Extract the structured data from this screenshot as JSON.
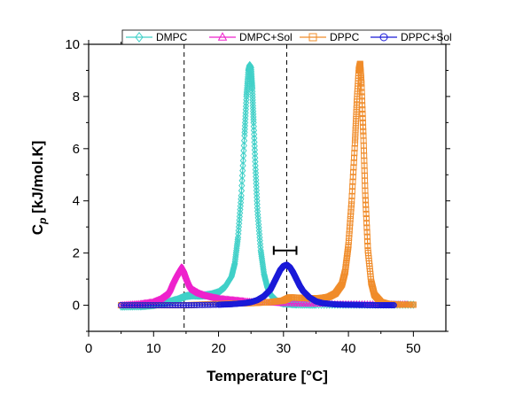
{
  "chart_data": {
    "type": "line",
    "xlabel": "Temperature [°C]",
    "ylabel_main": "C",
    "ylabel_sub": "p",
    "ylabel_unit": "  [kJ/mol.K]",
    "xlim": [
      0,
      55
    ],
    "ylim": [
      -1,
      10
    ],
    "xticks": [
      0,
      10,
      20,
      30,
      40,
      50
    ],
    "yticks": [
      0,
      2,
      4,
      6,
      8,
      10
    ],
    "legend_position": "top",
    "grid": false,
    "reference_lines_x": [
      14.7,
      30.5
    ],
    "error_bar": {
      "x_min": 28.5,
      "x_max": 32.0,
      "y": 2.1
    },
    "series": [
      {
        "name": "DMPC",
        "color": "#40d0c8",
        "marker": "diamond",
        "x": [
          5,
          8,
          10,
          12,
          14,
          15,
          16,
          17,
          18,
          19,
          20,
          21,
          22,
          22.5,
          23,
          23.5,
          24,
          24.3,
          24.6,
          24.8,
          25,
          25.2,
          25.4,
          25.7,
          26,
          26.5,
          27,
          27.5,
          28,
          29,
          30,
          32,
          35,
          40,
          45,
          50
        ],
        "values": [
          -0.05,
          -0.04,
          0.0,
          0.1,
          0.25,
          0.35,
          0.38,
          0.37,
          0.38,
          0.42,
          0.5,
          0.7,
          1.1,
          1.6,
          2.6,
          4.2,
          6.5,
          8.0,
          9.0,
          9.2,
          9.1,
          8.3,
          7.0,
          5.2,
          3.6,
          2.1,
          1.2,
          0.7,
          0.4,
          0.15,
          0.07,
          0.03,
          0.02,
          0.02,
          0.02,
          0.02
        ]
      },
      {
        "name": "DMPC+Sol",
        "color": "#ee22cc",
        "marker": "triangle",
        "x": [
          5,
          8,
          10,
          11,
          12,
          12.5,
          13,
          13.5,
          14,
          14.3,
          14.6,
          15,
          15.5,
          16,
          17,
          18,
          19,
          20,
          22,
          24,
          27,
          30,
          35,
          40,
          45,
          49
        ],
        "values": [
          0.0,
          0.05,
          0.12,
          0.22,
          0.4,
          0.6,
          0.9,
          1.15,
          1.35,
          1.45,
          1.38,
          1.1,
          0.8,
          0.6,
          0.45,
          0.36,
          0.3,
          0.25,
          0.2,
          0.15,
          0.1,
          0.07,
          0.05,
          0.04,
          0.03,
          0.03
        ]
      },
      {
        "name": "DPPC",
        "color": "#f08c2a",
        "marker": "square",
        "x": [
          5,
          10,
          15,
          20,
          25,
          28,
          30,
          31,
          33,
          34.5,
          36,
          37,
          38,
          39,
          39.5,
          40,
          40.5,
          41,
          41.3,
          41.6,
          41.8,
          42,
          42.3,
          42.6,
          43,
          43.5,
          44,
          45,
          46,
          48,
          50
        ],
        "values": [
          0.0,
          0.0,
          0.0,
          0.05,
          0.08,
          0.12,
          0.18,
          0.3,
          0.28,
          0.26,
          0.28,
          0.32,
          0.45,
          0.8,
          1.3,
          2.3,
          4.0,
          6.2,
          7.8,
          9.0,
          9.25,
          8.5,
          6.5,
          4.2,
          2.1,
          0.9,
          0.4,
          0.12,
          0.05,
          0.02,
          0.02
        ]
      },
      {
        "name": "DPPC+Sol",
        "color": "#1a1ad8",
        "marker": "circle",
        "x": [
          5,
          10,
          15,
          20,
          22,
          24,
          25,
          26,
          27,
          28,
          28.5,
          29,
          29.5,
          30,
          30.5,
          31,
          31.5,
          32,
          32.5,
          33,
          34,
          35,
          36,
          38,
          40,
          42,
          45,
          47
        ],
        "values": [
          0.0,
          0.0,
          0.0,
          0.02,
          0.04,
          0.08,
          0.12,
          0.2,
          0.35,
          0.6,
          0.85,
          1.1,
          1.35,
          1.5,
          1.55,
          1.45,
          1.25,
          1.0,
          0.75,
          0.55,
          0.3,
          0.15,
          0.08,
          0.03,
          0.02,
          0.01,
          0.0,
          0.0
        ]
      }
    ]
  }
}
